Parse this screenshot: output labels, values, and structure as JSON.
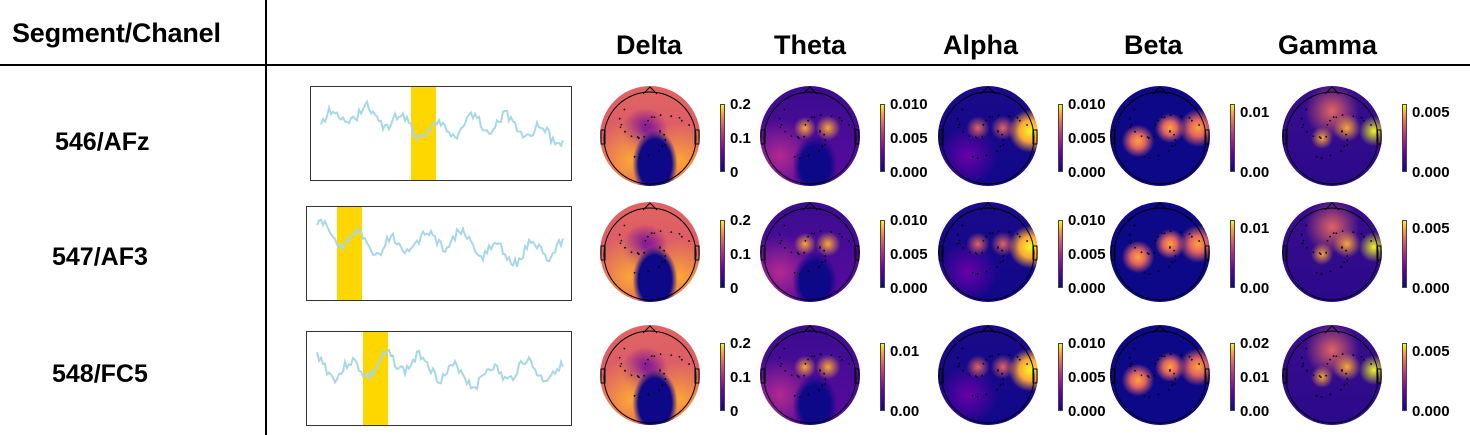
{
  "header": {
    "segment_label": "Segment/Chanel",
    "bands": [
      "Delta",
      "Theta",
      "Alpha",
      "Beta",
      "Gamma"
    ]
  },
  "colormap": [
    "#0d0887",
    "#6a00a8",
    "#b12a90",
    "#e16462",
    "#fca636",
    "#f0f921"
  ],
  "signal_color": "#a8d8e8",
  "highlight_color": "#ffd700",
  "rows": [
    {
      "label": "546/AFz",
      "colorbars": [
        {
          "ticks": [
            "0.2",
            "0.1",
            "0"
          ]
        },
        {
          "ticks": [
            "0.010",
            "0.005",
            "0.000"
          ]
        },
        {
          "ticks": [
            "0.010",
            "0.005",
            "0.000"
          ]
        },
        {
          "ticks": [
            "0.01",
            "0.00"
          ]
        },
        {
          "ticks": [
            "0.005",
            "0.000"
          ]
        }
      ]
    },
    {
      "label": "547/AF3",
      "colorbars": [
        {
          "ticks": [
            "0.2",
            "0.1",
            "0"
          ]
        },
        {
          "ticks": [
            "0.010",
            "0.005",
            "0.000"
          ]
        },
        {
          "ticks": [
            "0.010",
            "0.005",
            "0.000"
          ]
        },
        {
          "ticks": [
            "0.01",
            "0.00"
          ]
        },
        {
          "ticks": [
            "0.005",
            "0.000"
          ]
        }
      ]
    },
    {
      "label": "548/FC5",
      "colorbars": [
        {
          "ticks": [
            "0.2",
            "0.1",
            "0"
          ]
        },
        {
          "ticks": [
            "0.01",
            "0.00"
          ]
        },
        {
          "ticks": [
            "0.010",
            "0.005",
            "0.000"
          ]
        },
        {
          "ticks": [
            "0.02",
            "0.01",
            "0.00"
          ]
        },
        {
          "ticks": [
            "0.005",
            "0.000"
          ]
        }
      ]
    }
  ]
}
